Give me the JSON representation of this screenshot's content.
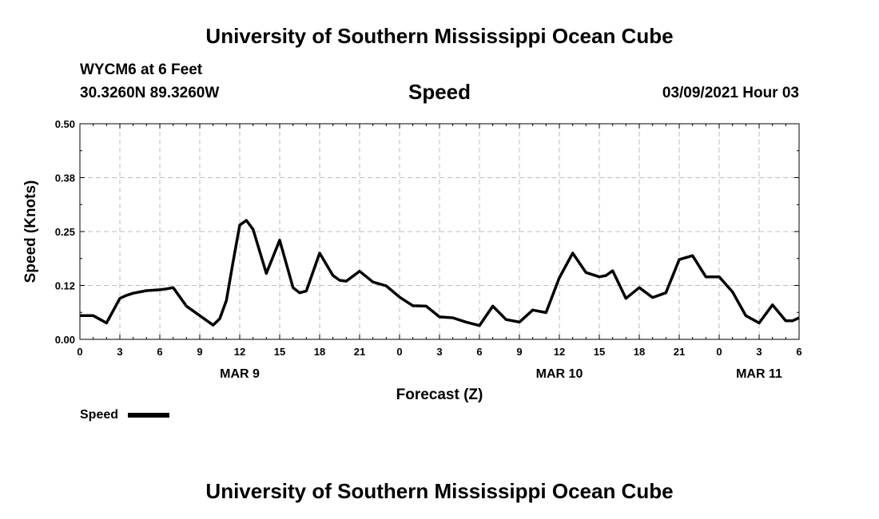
{
  "header": {
    "title_top": "University of Southern Mississippi Ocean Cube",
    "station": "WYCM6 at 6 Feet",
    "coords": "30.3260N 89.3260W",
    "parameter": "Speed",
    "timestamp": "03/09/2021 Hour 03",
    "title_bottom": "University of Southern Mississippi Ocean Cube"
  },
  "chart_data": {
    "type": "line",
    "xlabel": "Forecast (Z)",
    "ylabel": "Speed (Knots)",
    "xlim": [
      0,
      54
    ],
    "ylim": [
      0,
      0.5
    ],
    "y_ticks": [
      "0.00",
      "0.12",
      "0.25",
      "0.38",
      "0.50"
    ],
    "y_tick_values": [
      0,
      0.125,
      0.25,
      0.375,
      0.5
    ],
    "x_tick_values": [
      0,
      3,
      6,
      9,
      12,
      15,
      18,
      21,
      24,
      27,
      30,
      33,
      36,
      39,
      42,
      45,
      48,
      51,
      54
    ],
    "x_tick_labels": [
      "0",
      "3",
      "6",
      "9",
      "12",
      "15",
      "18",
      "21",
      "0",
      "3",
      "6",
      "9",
      "12",
      "15",
      "18",
      "21",
      "0",
      "3",
      "6"
    ],
    "date_labels": [
      {
        "x": 12,
        "label": "MAR 9"
      },
      {
        "x": 36,
        "label": "MAR 10"
      },
      {
        "x": 51,
        "label": "MAR 11"
      }
    ],
    "grid": true,
    "legend": "bottom-left",
    "series": [
      {
        "name": "Speed",
        "color": "#000000",
        "x": [
          0,
          1,
          2,
          3,
          3.5,
          4,
          5,
          6,
          6.5,
          7,
          8,
          9,
          10,
          10.5,
          11,
          11.5,
          12,
          12.5,
          13,
          14,
          15,
          16,
          16.5,
          17,
          18,
          19,
          19.5,
          20,
          21,
          22,
          23,
          24,
          25,
          26,
          27,
          28,
          29,
          30,
          31,
          32,
          33,
          34,
          35,
          36,
          37,
          38,
          39,
          39.5,
          40,
          41,
          42,
          43,
          44,
          45,
          46,
          47,
          48,
          49,
          50,
          51,
          52,
          53,
          53.5,
          54
        ],
        "values": [
          0.055,
          0.055,
          0.038,
          0.095,
          0.102,
          0.107,
          0.113,
          0.115,
          0.117,
          0.12,
          0.077,
          0.055,
          0.033,
          0.048,
          0.09,
          0.18,
          0.265,
          0.276,
          0.255,
          0.153,
          0.23,
          0.12,
          0.108,
          0.112,
          0.2,
          0.148,
          0.137,
          0.135,
          0.158,
          0.133,
          0.124,
          0.098,
          0.078,
          0.077,
          0.052,
          0.05,
          0.04,
          0.032,
          0.077,
          0.046,
          0.04,
          0.068,
          0.062,
          0.143,
          0.2,
          0.155,
          0.145,
          0.148,
          0.159,
          0.095,
          0.12,
          0.097,
          0.108,
          0.185,
          0.194,
          0.145,
          0.145,
          0.11,
          0.055,
          0.038,
          0.08,
          0.043,
          0.043,
          0.05
        ]
      }
    ]
  }
}
